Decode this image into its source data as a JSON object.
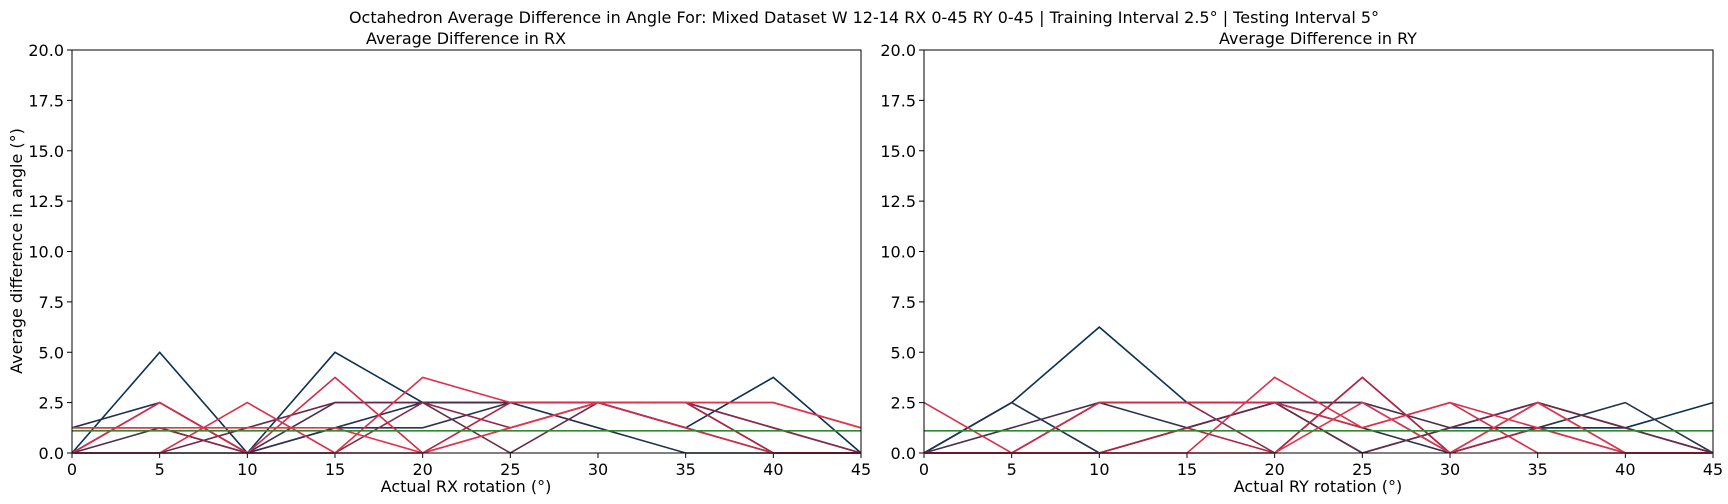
{
  "figure_title": "Octahedron Average Difference in Angle For: Mixed Dataset W 12-14 RX 0-45 RY 0-45 | Training Interval 2.5° | Testing Interval 5°",
  "chart_data": [
    {
      "type": "line",
      "title": "Average Difference in RX",
      "xlabel": "Actual RX rotation (°)",
      "ylabel": "Average difference in angle (°)",
      "xlim": [
        0,
        45
      ],
      "ylim": [
        0,
        20
      ],
      "xticks": [
        "0",
        "5",
        "10",
        "15",
        "20",
        "25",
        "30",
        "35",
        "40",
        "45"
      ],
      "yticks": [
        "0.0",
        "2.5",
        "5.0",
        "7.5",
        "10.0",
        "12.5",
        "15.0",
        "17.5",
        "20.0"
      ],
      "grid": false,
      "x": [
        0,
        5,
        10,
        15,
        20,
        25,
        30,
        35,
        40,
        45
      ],
      "series": [
        {
          "color": "#0b3150",
          "values": [
            0,
            5.0,
            0,
            5.0,
            2.5,
            2.5,
            2.5,
            1.25,
            3.75,
            0
          ]
        },
        {
          "color": "#1f3250",
          "values": [
            1.25,
            2.5,
            0,
            1.25,
            2.5,
            2.5,
            1.25,
            0,
            0,
            0
          ]
        },
        {
          "color": "#2c3350",
          "values": [
            0,
            0,
            0,
            1.25,
            1.25,
            2.5,
            2.5,
            1.25,
            0,
            0
          ]
        },
        {
          "color": "#4a2f4e",
          "values": [
            0,
            1.25,
            0,
            2.5,
            2.5,
            2.5,
            2.5,
            2.5,
            1.25,
            0
          ]
        },
        {
          "color": "#6a2b4b",
          "values": [
            0,
            0,
            1.25,
            2.5,
            2.5,
            0,
            2.5,
            2.5,
            0,
            0
          ]
        },
        {
          "color": "#8a2848",
          "values": [
            1.25,
            1.25,
            0,
            0,
            2.5,
            1.25,
            2.5,
            2.5,
            1.25,
            0
          ]
        },
        {
          "color": "#b02545",
          "values": [
            0,
            2.5,
            0,
            0,
            0,
            2.5,
            2.5,
            2.5,
            0,
            0
          ]
        },
        {
          "color": "#d12b48",
          "values": [
            0,
            2.5,
            0,
            3.75,
            0,
            1.25,
            2.5,
            1.25,
            0,
            0
          ]
        },
        {
          "color": "#dc2f4a",
          "values": [
            0,
            0,
            2.5,
            0,
            3.75,
            2.5,
            2.5,
            2.5,
            2.5,
            1.25
          ]
        },
        {
          "color": "#e0364d",
          "values": [
            1.25,
            1.25,
            1.25,
            1.25,
            0,
            1.25,
            2.5,
            2.5,
            2.5,
            1.25
          ]
        },
        {
          "color": "#2e8b2e",
          "values": [
            1.1,
            1.1,
            1.1,
            1.1,
            1.1,
            1.1,
            1.1,
            1.1,
            1.1,
            1.1
          ]
        }
      ]
    },
    {
      "type": "line",
      "title": "Average Difference in RY",
      "xlabel": "Actual RY rotation (°)",
      "ylabel": "",
      "xlim": [
        0,
        45
      ],
      "ylim": [
        0,
        20
      ],
      "xticks": [
        "0",
        "5",
        "10",
        "15",
        "20",
        "25",
        "30",
        "35",
        "40",
        "45"
      ],
      "yticks": [
        "0.0",
        "2.5",
        "5.0",
        "7.5",
        "10.0",
        "12.5",
        "15.0",
        "17.5",
        "20.0"
      ],
      "grid": false,
      "x": [
        0,
        5,
        10,
        15,
        20,
        25,
        30,
        35,
        40,
        45
      ],
      "series": [
        {
          "color": "#0b3150",
          "values": [
            0,
            2.5,
            6.25,
            2.5,
            2.5,
            0,
            1.25,
            1.25,
            1.25,
            2.5
          ]
        },
        {
          "color": "#1f3250",
          "values": [
            0,
            2.5,
            0,
            1.25,
            2.5,
            2.5,
            0,
            1.25,
            1.25,
            0
          ]
        },
        {
          "color": "#2c3350",
          "values": [
            0,
            0,
            2.5,
            1.25,
            2.5,
            1.25,
            0,
            1.25,
            2.5,
            0
          ]
        },
        {
          "color": "#4a2f4e",
          "values": [
            0,
            1.25,
            2.5,
            2.5,
            2.5,
            2.5,
            1.25,
            2.5,
            1.25,
            0
          ]
        },
        {
          "color": "#6a2b4b",
          "values": [
            0,
            0,
            0,
            1.25,
            2.5,
            0,
            1.25,
            2.5,
            1.25,
            0
          ]
        },
        {
          "color": "#8a2848",
          "values": [
            0,
            0,
            2.5,
            2.5,
            0,
            3.75,
            0,
            2.5,
            0,
            0
          ]
        },
        {
          "color": "#b02545",
          "values": [
            0,
            0,
            0,
            1.25,
            0,
            3.75,
            0,
            1.25,
            0,
            0
          ]
        },
        {
          "color": "#d12b48",
          "values": [
            0,
            0,
            2.5,
            2.5,
            2.5,
            1.25,
            2.5,
            0,
            0,
            0
          ]
        },
        {
          "color": "#dc2f4a",
          "values": [
            2.5,
            0,
            0,
            0,
            3.75,
            1.25,
            2.5,
            1.25,
            0,
            0
          ]
        },
        {
          "color": "#e0364d",
          "values": [
            0,
            0,
            0,
            0,
            0,
            2.5,
            0,
            2.5,
            0,
            0
          ]
        },
        {
          "color": "#2e8b2e",
          "values": [
            1.1,
            1.1,
            1.1,
            1.1,
            1.1,
            1.1,
            1.1,
            1.1,
            1.1,
            1.1
          ]
        }
      ]
    }
  ]
}
